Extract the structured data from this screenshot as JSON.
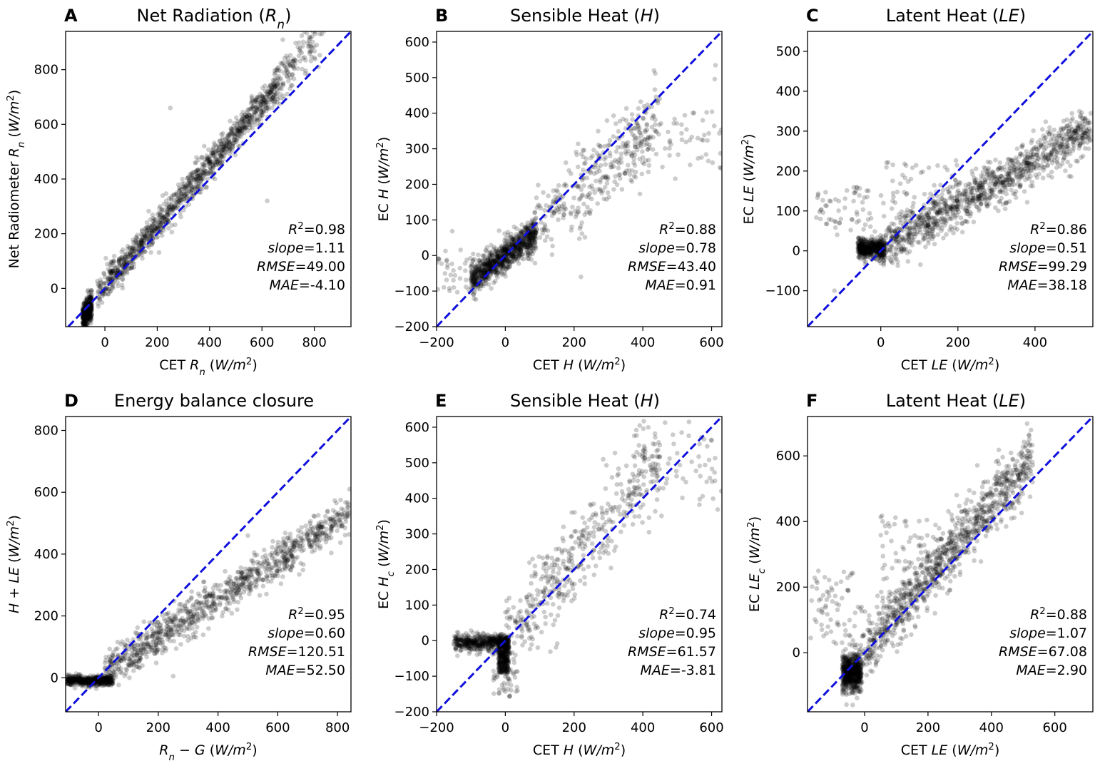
{
  "figure": {
    "panels": [
      {
        "id": "A",
        "letter": "A",
        "title": "Net Radiation (Rn)",
        "xlabel": "CET Rn (W/m2)",
        "ylabel": "Net Radiometer Rn (W/m2)",
        "stats": [
          "R2=0.98",
          "slope=1.11",
          "RMSE=49.00",
          "MAE=-4.10"
        ]
      },
      {
        "id": "B",
        "letter": "B",
        "title": "Sensible Heat (H)",
        "xlabel": "CET H (W/m2)",
        "ylabel": "EC H (W/m2)",
        "stats": [
          "R2=0.88",
          "slope=0.78",
          "RMSE=43.40",
          "MAE=0.91"
        ]
      },
      {
        "id": "C",
        "letter": "C",
        "title": "Latent Heat (LE)",
        "xlabel": "CET LE (W/m2)",
        "ylabel": "EC LE (W/m2)",
        "stats": [
          "R2=0.86",
          "slope=0.51",
          "RMSE=99.29",
          "MAE=38.18"
        ]
      },
      {
        "id": "D",
        "letter": "D",
        "title": "Energy balance closure",
        "xlabel": "Rn − G (W/m2)",
        "ylabel": "H + LE (W/m2)",
        "stats": [
          "R2=0.95",
          "slope=0.60",
          "RMSE=120.51",
          "MAE=52.50"
        ]
      },
      {
        "id": "E",
        "letter": "E",
        "title": "Sensible Heat (H)",
        "xlabel": "CET H (W/m2)",
        "ylabel": "EC Hc (W/m2)",
        "stats": [
          "R2=0.74",
          "slope=0.95",
          "RMSE=61.57",
          "MAE=-3.81"
        ]
      },
      {
        "id": "F",
        "letter": "F",
        "title": "Latent Heat (LE)",
        "xlabel": "CET LE (W/m2)",
        "ylabel": "EC LEc (W/m2)",
        "stats": [
          "R2=0.88",
          "slope=1.07",
          "RMSE=67.08",
          "MAE=2.90"
        ]
      }
    ]
  },
  "chart_data": [
    {
      "panel": "A",
      "type": "scatter",
      "title": "Net Radiation (Rn)",
      "xlabel": "CET Rn (W/m2)",
      "ylabel": "Net Radiometer Rn (W/m2)",
      "xlim": [
        -150,
        940
      ],
      "ylim": [
        -140,
        940
      ],
      "xticks": [
        0,
        200,
        400,
        600,
        800
      ],
      "yticks": [
        0,
        200,
        400,
        600,
        800
      ],
      "reference_line": "1:1",
      "stats": {
        "R2": 0.98,
        "slope": 1.11,
        "RMSE": 49.0,
        "MAE": -4.1
      },
      "points_sample": [
        [
          -80,
          -100
        ],
        [
          -60,
          -40
        ],
        [
          0,
          0
        ],
        [
          100,
          110
        ],
        [
          200,
          215
        ],
        [
          300,
          330
        ],
        [
          400,
          440
        ],
        [
          500,
          550
        ],
        [
          600,
          650
        ],
        [
          680,
          850
        ],
        [
          820,
          920
        ],
        [
          620,
          320
        ],
        [
          250,
          660
        ]
      ]
    },
    {
      "panel": "B",
      "type": "scatter",
      "title": "Sensible Heat (H)",
      "xlabel": "CET H (W/m2)",
      "ylabel": "EC H (W/m2)",
      "xlim": [
        -200,
        630
      ],
      "ylim": [
        -200,
        630
      ],
      "xticks": [
        -200,
        0,
        200,
        400,
        600
      ],
      "yticks": [
        -200,
        -100,
        0,
        100,
        200,
        300,
        400,
        500,
        600
      ],
      "reference_line": "1:1",
      "stats": {
        "R2": 0.88,
        "slope": 0.78,
        "RMSE": 43.4,
        "MAE": 0.91
      },
      "points_sample": [
        [
          -150,
          -50
        ],
        [
          -50,
          -30
        ],
        [
          0,
          0
        ],
        [
          50,
          40
        ],
        [
          100,
          80
        ],
        [
          200,
          180
        ],
        [
          300,
          260
        ],
        [
          400,
          320
        ],
        [
          500,
          340
        ],
        [
          600,
          400
        ],
        [
          220,
          -60
        ]
      ]
    },
    {
      "panel": "C",
      "type": "scatter",
      "title": "Latent Heat (LE)",
      "xlabel": "CET LE (W/m2)",
      "ylabel": "EC LE (W/m2)",
      "xlim": [
        -190,
        550
      ],
      "ylim": [
        -190,
        550
      ],
      "xticks": [
        0,
        200,
        400
      ],
      "yticks": [
        -100,
        0,
        100,
        200,
        300,
        400,
        500
      ],
      "reference_line": "1:1",
      "stats": {
        "R2": 0.86,
        "slope": 0.51,
        "RMSE": 99.29,
        "MAE": 38.18
      },
      "points_sample": [
        [
          -50,
          5
        ],
        [
          0,
          10
        ],
        [
          100,
          60
        ],
        [
          200,
          120
        ],
        [
          300,
          175
        ],
        [
          400,
          240
        ],
        [
          500,
          300
        ],
        [
          -150,
          80
        ],
        [
          -120,
          -100
        ]
      ]
    },
    {
      "panel": "D",
      "type": "scatter",
      "title": "Energy balance closure",
      "xlabel": "Rn − G (W/m2)",
      "ylabel": "H + LE (W/m2)",
      "xlim": [
        -110,
        845
      ],
      "ylim": [
        -110,
        845
      ],
      "xticks": [
        0,
        200,
        400,
        600,
        800
      ],
      "yticks": [
        0,
        200,
        400,
        600,
        800
      ],
      "reference_line": "1:1",
      "stats": {
        "R2": 0.95,
        "slope": 0.6,
        "RMSE": 120.51,
        "MAE": 52.5
      },
      "points_sample": [
        [
          -80,
          -10
        ],
        [
          0,
          0
        ],
        [
          100,
          75
        ],
        [
          200,
          150
        ],
        [
          300,
          215
        ],
        [
          400,
          270
        ],
        [
          500,
          330
        ],
        [
          600,
          390
        ],
        [
          700,
          450
        ],
        [
          800,
          500
        ],
        [
          840,
          610
        ]
      ]
    },
    {
      "panel": "E",
      "type": "scatter",
      "title": "Sensible Heat (H)",
      "xlabel": "CET H (W/m2)",
      "ylabel": "EC Hc (W/m2)",
      "xlim": [
        -200,
        630
      ],
      "ylim": [
        -200,
        630
      ],
      "xticks": [
        -200,
        0,
        200,
        400,
        600
      ],
      "yticks": [
        -200,
        -100,
        0,
        100,
        200,
        300,
        400,
        500,
        600
      ],
      "reference_line": "1:1",
      "stats": {
        "R2": 0.74,
        "slope": 0.95,
        "RMSE": 61.57,
        "MAE": -3.81
      },
      "points_sample": [
        [
          -150,
          0
        ],
        [
          -50,
          -10
        ],
        [
          0,
          -60
        ],
        [
          50,
          30
        ],
        [
          100,
          110
        ],
        [
          200,
          260
        ],
        [
          300,
          380
        ],
        [
          400,
          500
        ],
        [
          500,
          560
        ],
        [
          600,
          600
        ],
        [
          0,
          -170
        ]
      ]
    },
    {
      "panel": "F",
      "type": "scatter",
      "title": "Latent Heat (LE)",
      "xlabel": "CET LE (W/m2)",
      "ylabel": "EC LEc (W/m2)",
      "xlim": [
        -180,
        720
      ],
      "ylim": [
        -180,
        720
      ],
      "xticks": [
        0,
        200,
        400,
        600
      ],
      "yticks": [
        0,
        200,
        400,
        600
      ],
      "reference_line": "1:1",
      "stats": {
        "R2": 0.88,
        "slope": 1.07,
        "RMSE": 67.08,
        "MAE": 2.9
      },
      "points_sample": [
        [
          -50,
          -60
        ],
        [
          0,
          0
        ],
        [
          100,
          140
        ],
        [
          200,
          230
        ],
        [
          300,
          320
        ],
        [
          400,
          440
        ],
        [
          500,
          560
        ],
        [
          520,
          700
        ],
        [
          -150,
          120
        ],
        [
          100,
          350
        ]
      ]
    }
  ]
}
